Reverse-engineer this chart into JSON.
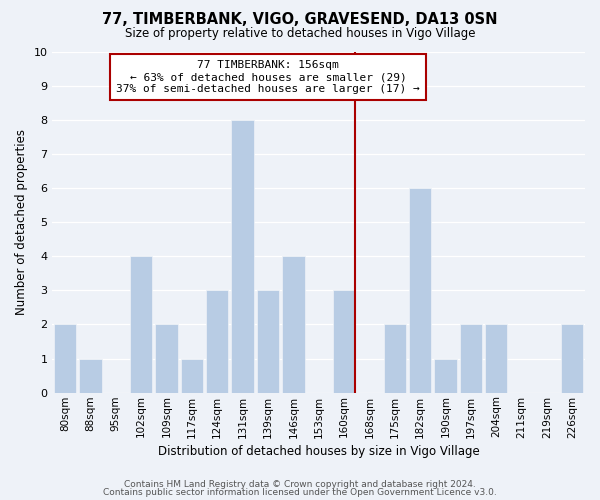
{
  "title": "77, TIMBERBANK, VIGO, GRAVESEND, DA13 0SN",
  "subtitle": "Size of property relative to detached houses in Vigo Village",
  "xlabel": "Distribution of detached houses by size in Vigo Village",
  "ylabel": "Number of detached properties",
  "bar_labels": [
    "80sqm",
    "88sqm",
    "95sqm",
    "102sqm",
    "109sqm",
    "117sqm",
    "124sqm",
    "131sqm",
    "139sqm",
    "146sqm",
    "153sqm",
    "160sqm",
    "168sqm",
    "175sqm",
    "182sqm",
    "190sqm",
    "197sqm",
    "204sqm",
    "211sqm",
    "219sqm",
    "226sqm"
  ],
  "bar_values": [
    2,
    1,
    0,
    4,
    2,
    1,
    3,
    8,
    3,
    4,
    0,
    3,
    0,
    2,
    6,
    1,
    2,
    2,
    0,
    0,
    2
  ],
  "bar_color": "#b8cce4",
  "annotation_title": "77 TIMBERBANK: 156sqm",
  "annotation_line1": "← 63% of detached houses are smaller (29)",
  "annotation_line2": "37% of semi-detached houses are larger (17) →",
  "annotation_box_color": "#ffffff",
  "annotation_box_edge": "#aa0000",
  "reference_line_color": "#aa0000",
  "ylim": [
    0,
    10
  ],
  "yticks": [
    0,
    1,
    2,
    3,
    4,
    5,
    6,
    7,
    8,
    9,
    10
  ],
  "footer1": "Contains HM Land Registry data © Crown copyright and database right 2024.",
  "footer2": "Contains public sector information licensed under the Open Government Licence v3.0.",
  "background_color": "#eef2f8",
  "grid_color": "#ffffff",
  "ref_line_x": 11.43
}
